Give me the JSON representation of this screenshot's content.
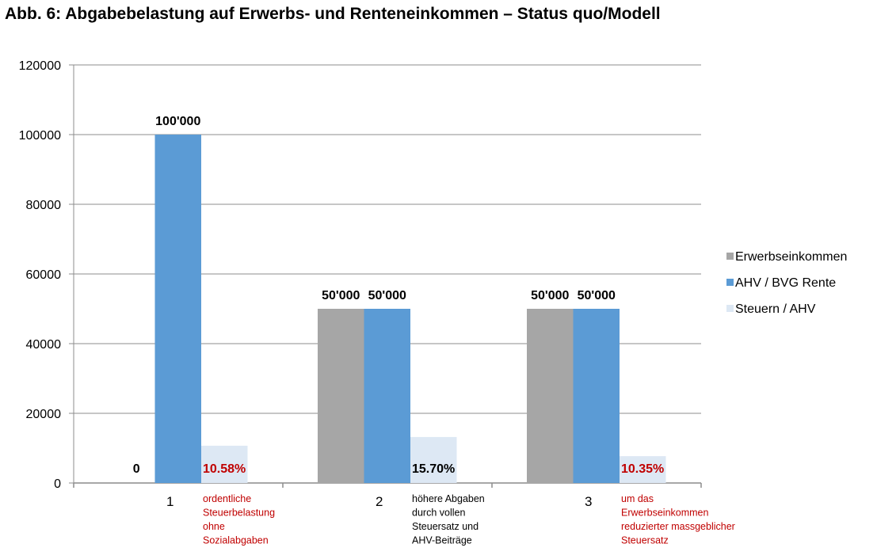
{
  "chart_data": {
    "type": "bar",
    "title": "Abb. 6: Abgabebelastung auf Erwerbs- und Renteneinkommen – Status quo/Modell",
    "xlabel": "",
    "ylabel": "",
    "ylim": [
      0,
      120000
    ],
    "yticks": [
      "0",
      "20000",
      "40000",
      "60000",
      "80000",
      "100000",
      "120000"
    ],
    "grid": true,
    "legend_position": "right",
    "categories": [
      "1",
      "2",
      "3"
    ],
    "category_notes": [
      {
        "lines": [
          "ordentliche",
          "Steuerbelastung",
          "ohne",
          "Sozialabgaben"
        ],
        "color": "#c00000"
      },
      {
        "lines": [
          "höhere Abgaben",
          "durch vollen",
          "Steuersatz  und",
          "AHV-Beiträge"
        ],
        "color": "#000000"
      },
      {
        "lines": [
          "um das",
          "Erwerbseinkommen",
          "reduzierter  massgeblicher",
          "Steuersatz"
        ],
        "color": "#c00000"
      }
    ],
    "series": [
      {
        "name": "Erwerbseinkommen",
        "color": "#a6a6a6",
        "values": [
          0,
          50000,
          50000
        ],
        "labels": [
          "0",
          "50'000",
          "50'000"
        ],
        "label_color": "#000000"
      },
      {
        "name": "AHV / BVG Rente",
        "color": "#5b9bd5",
        "values": [
          100000,
          50000,
          50000
        ],
        "labels": [
          "100'000",
          "50'000",
          "50'000"
        ],
        "label_color": "#000000"
      },
      {
        "name": "Steuern / AHV",
        "color": "#dde8f4",
        "values": [
          10700,
          13200,
          7700
        ],
        "labels": [
          "10.58%",
          "15.70%",
          "10.35%"
        ],
        "label_colors": [
          "#c00000",
          "#000000",
          "#c00000"
        ]
      }
    ]
  }
}
